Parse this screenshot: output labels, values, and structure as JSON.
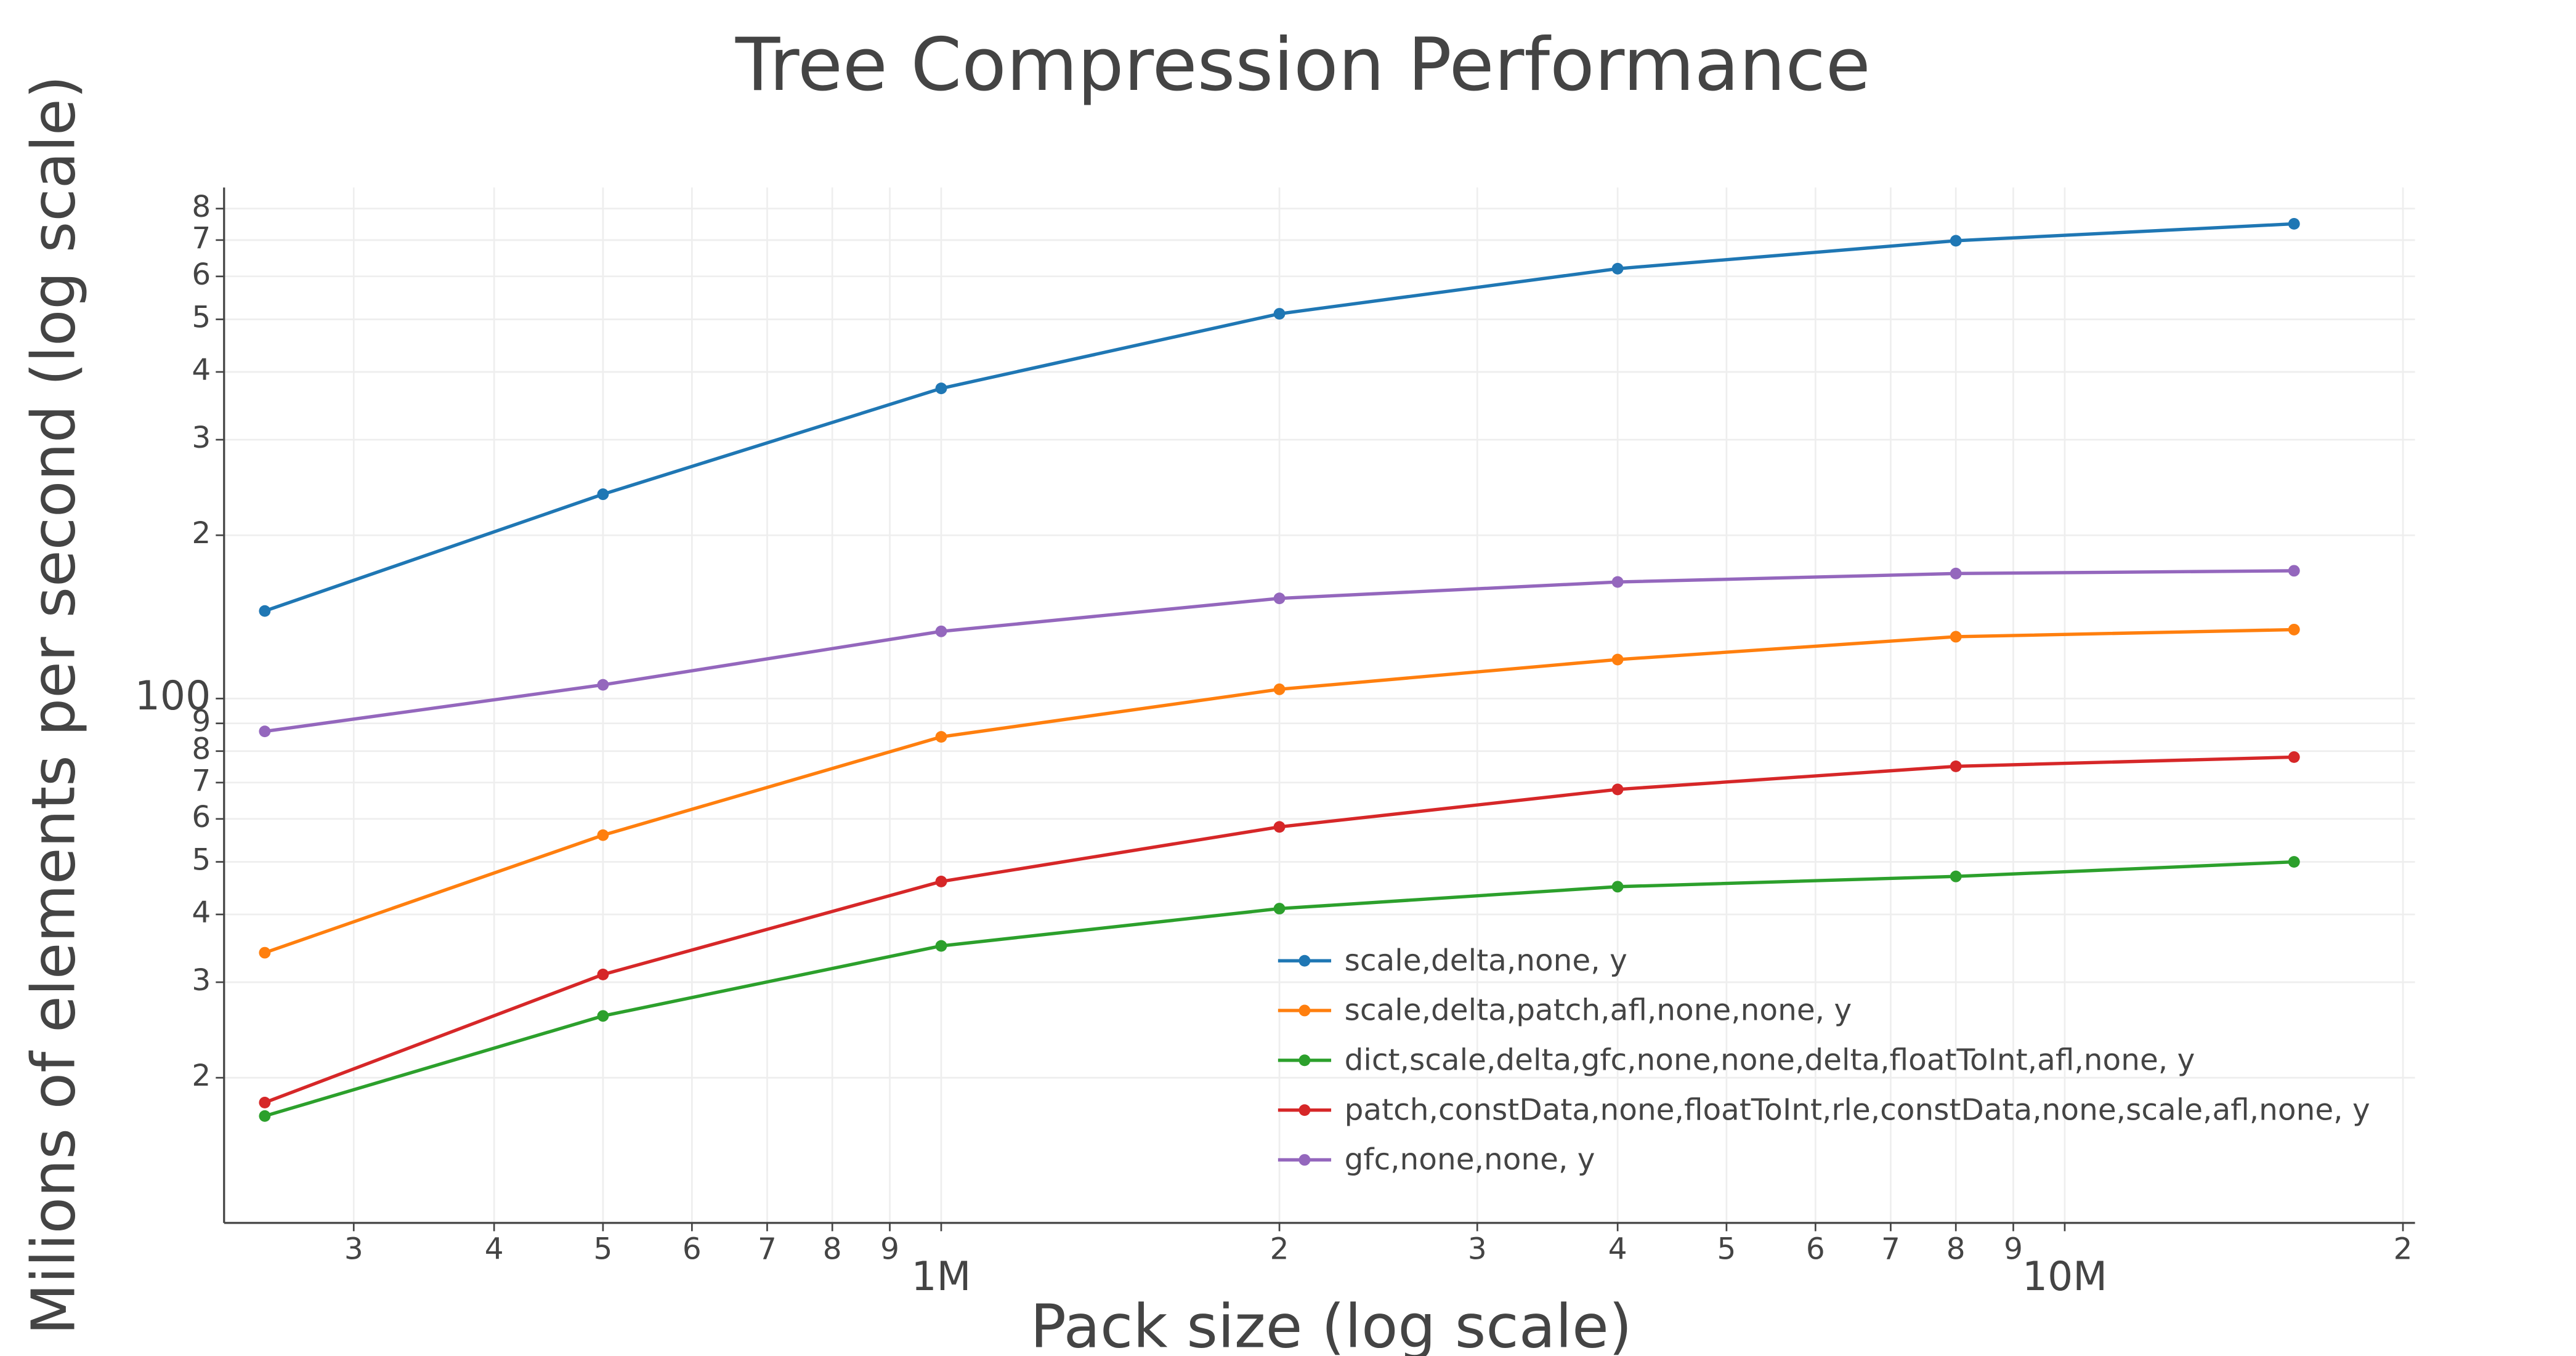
{
  "chart_data": {
    "type": "line",
    "title": "Tree Compression Performance",
    "x_label": "Pack size (log scale)",
    "y_label": "Milions of elements per second (log scale)",
    "log_x": true,
    "log_y": true,
    "grid": true,
    "x": [
      250000,
      500000,
      1000000,
      2000000,
      4000000,
      8000000,
      16000000
    ],
    "xlim": [
      230000,
      20500000
    ],
    "xticks": [
      {
        "value": 300000,
        "label": "3"
      },
      {
        "value": 400000,
        "label": "4"
      },
      {
        "value": 500000,
        "label": "5"
      },
      {
        "value": 600000,
        "label": "6"
      },
      {
        "value": 700000,
        "label": "7"
      },
      {
        "value": 800000,
        "label": "8"
      },
      {
        "value": 900000,
        "label": "9"
      },
      {
        "value": 1000000,
        "label": "1M"
      },
      {
        "value": 2000000,
        "label": "2"
      },
      {
        "value": 3000000,
        "label": "3"
      },
      {
        "value": 4000000,
        "label": "4"
      },
      {
        "value": 5000000,
        "label": "5"
      },
      {
        "value": 6000000,
        "label": "6"
      },
      {
        "value": 7000000,
        "label": "7"
      },
      {
        "value": 8000000,
        "label": "8"
      },
      {
        "value": 9000000,
        "label": "9"
      },
      {
        "value": 10000000,
        "label": "10M"
      },
      {
        "value": 20000000,
        "label": "2"
      }
    ],
    "ylim": [
      10.8,
      875
    ],
    "yticks": [
      {
        "value": 20,
        "label": "2"
      },
      {
        "value": 30,
        "label": "3"
      },
      {
        "value": 40,
        "label": "4"
      },
      {
        "value": 50,
        "label": "5"
      },
      {
        "value": 60,
        "label": "6"
      },
      {
        "value": 70,
        "label": "7"
      },
      {
        "value": 80,
        "label": "8"
      },
      {
        "value": 90,
        "label": "9"
      },
      100,
      {
        "value": 200,
        "label": "2"
      },
      {
        "value": 300,
        "label": "3"
      },
      {
        "value": 400,
        "label": "4"
      },
      {
        "value": 500,
        "label": "5"
      },
      {
        "value": 600,
        "label": "6"
      },
      {
        "value": 700,
        "label": "7"
      },
      {
        "value": 800,
        "label": "8"
      }
    ],
    "legend_position": "lower center",
    "series": [
      {
        "name": "scale,delta,none, y",
        "color": "#1f77b4",
        "values": [
          145,
          238,
          373,
          512,
          620,
          698,
          750
        ]
      },
      {
        "name": "scale,delta,patch,afl,none,none, y",
        "color": "#ff7f0e",
        "values": [
          34,
          56,
          85,
          104,
          118,
          130,
          134
        ]
      },
      {
        "name": "dict,scale,delta,gfc,none,none,delta,floatToInt,afl,none, y",
        "color": "#2ca02c",
        "values": [
          17,
          26,
          35,
          41,
          45,
          47,
          50
        ]
      },
      {
        "name": "patch,constData,none,floatToInt,rle,constData,none,scale,afl,none, y",
        "color": "#d62728",
        "values": [
          18,
          31,
          46,
          58,
          68,
          75,
          78
        ]
      },
      {
        "name": "gfc,none,none, y",
        "color": "#9467bd",
        "values": [
          87,
          106,
          133,
          153,
          164,
          170,
          172
        ]
      }
    ]
  }
}
